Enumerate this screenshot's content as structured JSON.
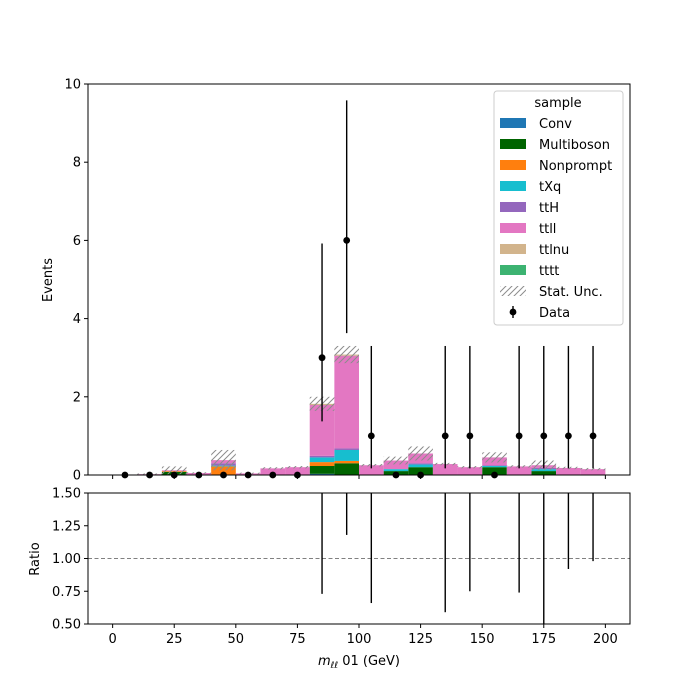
{
  "chart_data": [
    {
      "type": "bar",
      "stacked": true,
      "xlabel": "$m_{\\ell\\ell}$ 01 (GeV)",
      "xlabel_display": {
        "base": "m",
        "sub": "ℓℓ",
        "rest": " 01 (GeV)"
      },
      "ylabel": "Events",
      "xlim": [
        -10,
        210
      ],
      "ylim": [
        0,
        10
      ],
      "x_ticks": [
        0,
        25,
        50,
        75,
        100,
        125,
        150,
        175,
        200
      ],
      "y_ticks": [
        0,
        2,
        4,
        6,
        8,
        10
      ],
      "y_tick_labels": [
        "0",
        "2",
        "4",
        "6",
        "8",
        "10"
      ],
      "bin_edges": [
        0,
        10,
        20,
        30,
        40,
        50,
        60,
        70,
        80,
        90,
        100,
        110,
        120,
        130,
        140,
        150,
        160,
        170,
        180,
        190,
        200
      ],
      "legend": {
        "title": "sample",
        "position": "top-right"
      },
      "series": [
        {
          "name": "Conv",
          "color": "#1f77b4",
          "values": [
            0,
            0,
            0,
            0,
            0,
            0,
            0,
            0,
            0.03,
            0,
            0,
            0,
            0,
            0,
            0,
            0,
            0,
            0,
            0.01,
            0
          ]
        },
        {
          "name": "Multiboson",
          "color": "#006400",
          "values": [
            0,
            0,
            0.08,
            0,
            0,
            0,
            0,
            0,
            0.2,
            0.3,
            0,
            0.1,
            0.2,
            0,
            0,
            0.2,
            0,
            0.1,
            0,
            0
          ]
        },
        {
          "name": "Nonprompt",
          "color": "#ff7f0e",
          "values": [
            0,
            0,
            0.02,
            0,
            0.22,
            0,
            0,
            0,
            0.1,
            0.06,
            0,
            0,
            0,
            0,
            0,
            0,
            0,
            0,
            0,
            0
          ]
        },
        {
          "name": "tXq",
          "color": "#17becf",
          "values": [
            0,
            0,
            0,
            0,
            0.02,
            0,
            0,
            0,
            0.12,
            0.28,
            0,
            0.05,
            0.07,
            0,
            0,
            0.03,
            0,
            0.05,
            0,
            0
          ]
        },
        {
          "name": "ttH",
          "color": "#9467bd",
          "values": [
            0,
            0,
            0,
            0,
            0.06,
            0,
            0,
            0,
            0.04,
            0.04,
            0,
            0,
            0.03,
            0,
            0,
            0.02,
            0,
            0.03,
            0,
            0
          ]
        },
        {
          "name": "ttll",
          "color": "#e377c2",
          "values": [
            0,
            0.02,
            0.02,
            0.05,
            0.08,
            0.04,
            0.17,
            0.2,
            1.3,
            2.37,
            0.25,
            0.22,
            0.25,
            0.28,
            0.2,
            0.2,
            0.22,
            0.07,
            0.17,
            0.15
          ]
        },
        {
          "name": "ttlnu",
          "color": "#d2b48c",
          "values": [
            0,
            0,
            0,
            0,
            0,
            0,
            0,
            0,
            0.03,
            0.03,
            0,
            0,
            0,
            0,
            0,
            0,
            0,
            0,
            0,
            0
          ]
        },
        {
          "name": "tttt",
          "color": "#3cb371",
          "values": [
            0,
            0,
            0,
            0,
            0,
            0,
            0,
            0,
            0,
            0,
            0,
            0,
            0,
            0,
            0,
            0,
            0,
            0,
            0,
            0
          ]
        }
      ],
      "stat_unc": {
        "name": "Stat. Unc.",
        "half_width": [
          0,
          0.02,
          0.1,
          0.02,
          0.26,
          0.02,
          0.03,
          0.03,
          0.18,
          0.22,
          0.03,
          0.1,
          0.18,
          0.03,
          0.03,
          0.13,
          0.03,
          0.12,
          0.03,
          0.03
        ]
      },
      "data_points": {
        "name": "Data",
        "x": [
          5,
          15,
          25,
          35,
          45,
          55,
          65,
          75,
          85,
          95,
          105,
          115,
          125,
          135,
          145,
          155,
          165,
          175,
          185,
          195
        ],
        "y": [
          0,
          0,
          0,
          0,
          0,
          0,
          0,
          0,
          3,
          6,
          1,
          0,
          0,
          1,
          1,
          0,
          1,
          1,
          1,
          1
        ],
        "err_lo": [
          0,
          0,
          0,
          0,
          0,
          0,
          0,
          0,
          1.63,
          2.37,
          0.83,
          0,
          0,
          0.83,
          0.83,
          0,
          0.83,
          0.83,
          0.83,
          0.83
        ],
        "err_hi": [
          0,
          0,
          0,
          0,
          0,
          0,
          0,
          0,
          2.92,
          3.58,
          2.3,
          0,
          0,
          2.3,
          2.3,
          0,
          2.3,
          2.3,
          2.3,
          2.3
        ]
      }
    },
    {
      "type": "ratio",
      "xlabel": "$m_{\\ell\\ell}$ 01 (GeV)",
      "ylabel": "Ratio",
      "xlim": [
        -10,
        210
      ],
      "ylim": [
        0.5,
        1.5
      ],
      "x_ticks": [
        0,
        25,
        50,
        75,
        100,
        125,
        150,
        175,
        200
      ],
      "x_tick_labels": [
        "0",
        "25",
        "50",
        "75",
        "100",
        "125",
        "150",
        "175",
        "200"
      ],
      "y_ticks": [
        0.5,
        0.75,
        1.0,
        1.25,
        1.5
      ],
      "y_tick_labels": [
        "0.50",
        "0.75",
        "1.00",
        "1.25",
        "1.50"
      ],
      "reference_line": 1.0,
      "error_bars": [
        {
          "x": 85,
          "lo": 0.73,
          "hi": 1.5
        },
        {
          "x": 95,
          "lo": 1.18,
          "hi": 1.5
        },
        {
          "x": 105,
          "lo": 0.66,
          "hi": 1.5
        },
        {
          "x": 135,
          "lo": 0.59,
          "hi": 1.5
        },
        {
          "x": 145,
          "lo": 0.75,
          "hi": 1.5
        },
        {
          "x": 165,
          "lo": 0.74,
          "hi": 1.5
        },
        {
          "x": 175,
          "lo": 0.5,
          "hi": 1.5
        },
        {
          "x": 185,
          "lo": 0.92,
          "hi": 1.5
        },
        {
          "x": 195,
          "lo": 0.98,
          "hi": 1.5
        }
      ]
    }
  ]
}
